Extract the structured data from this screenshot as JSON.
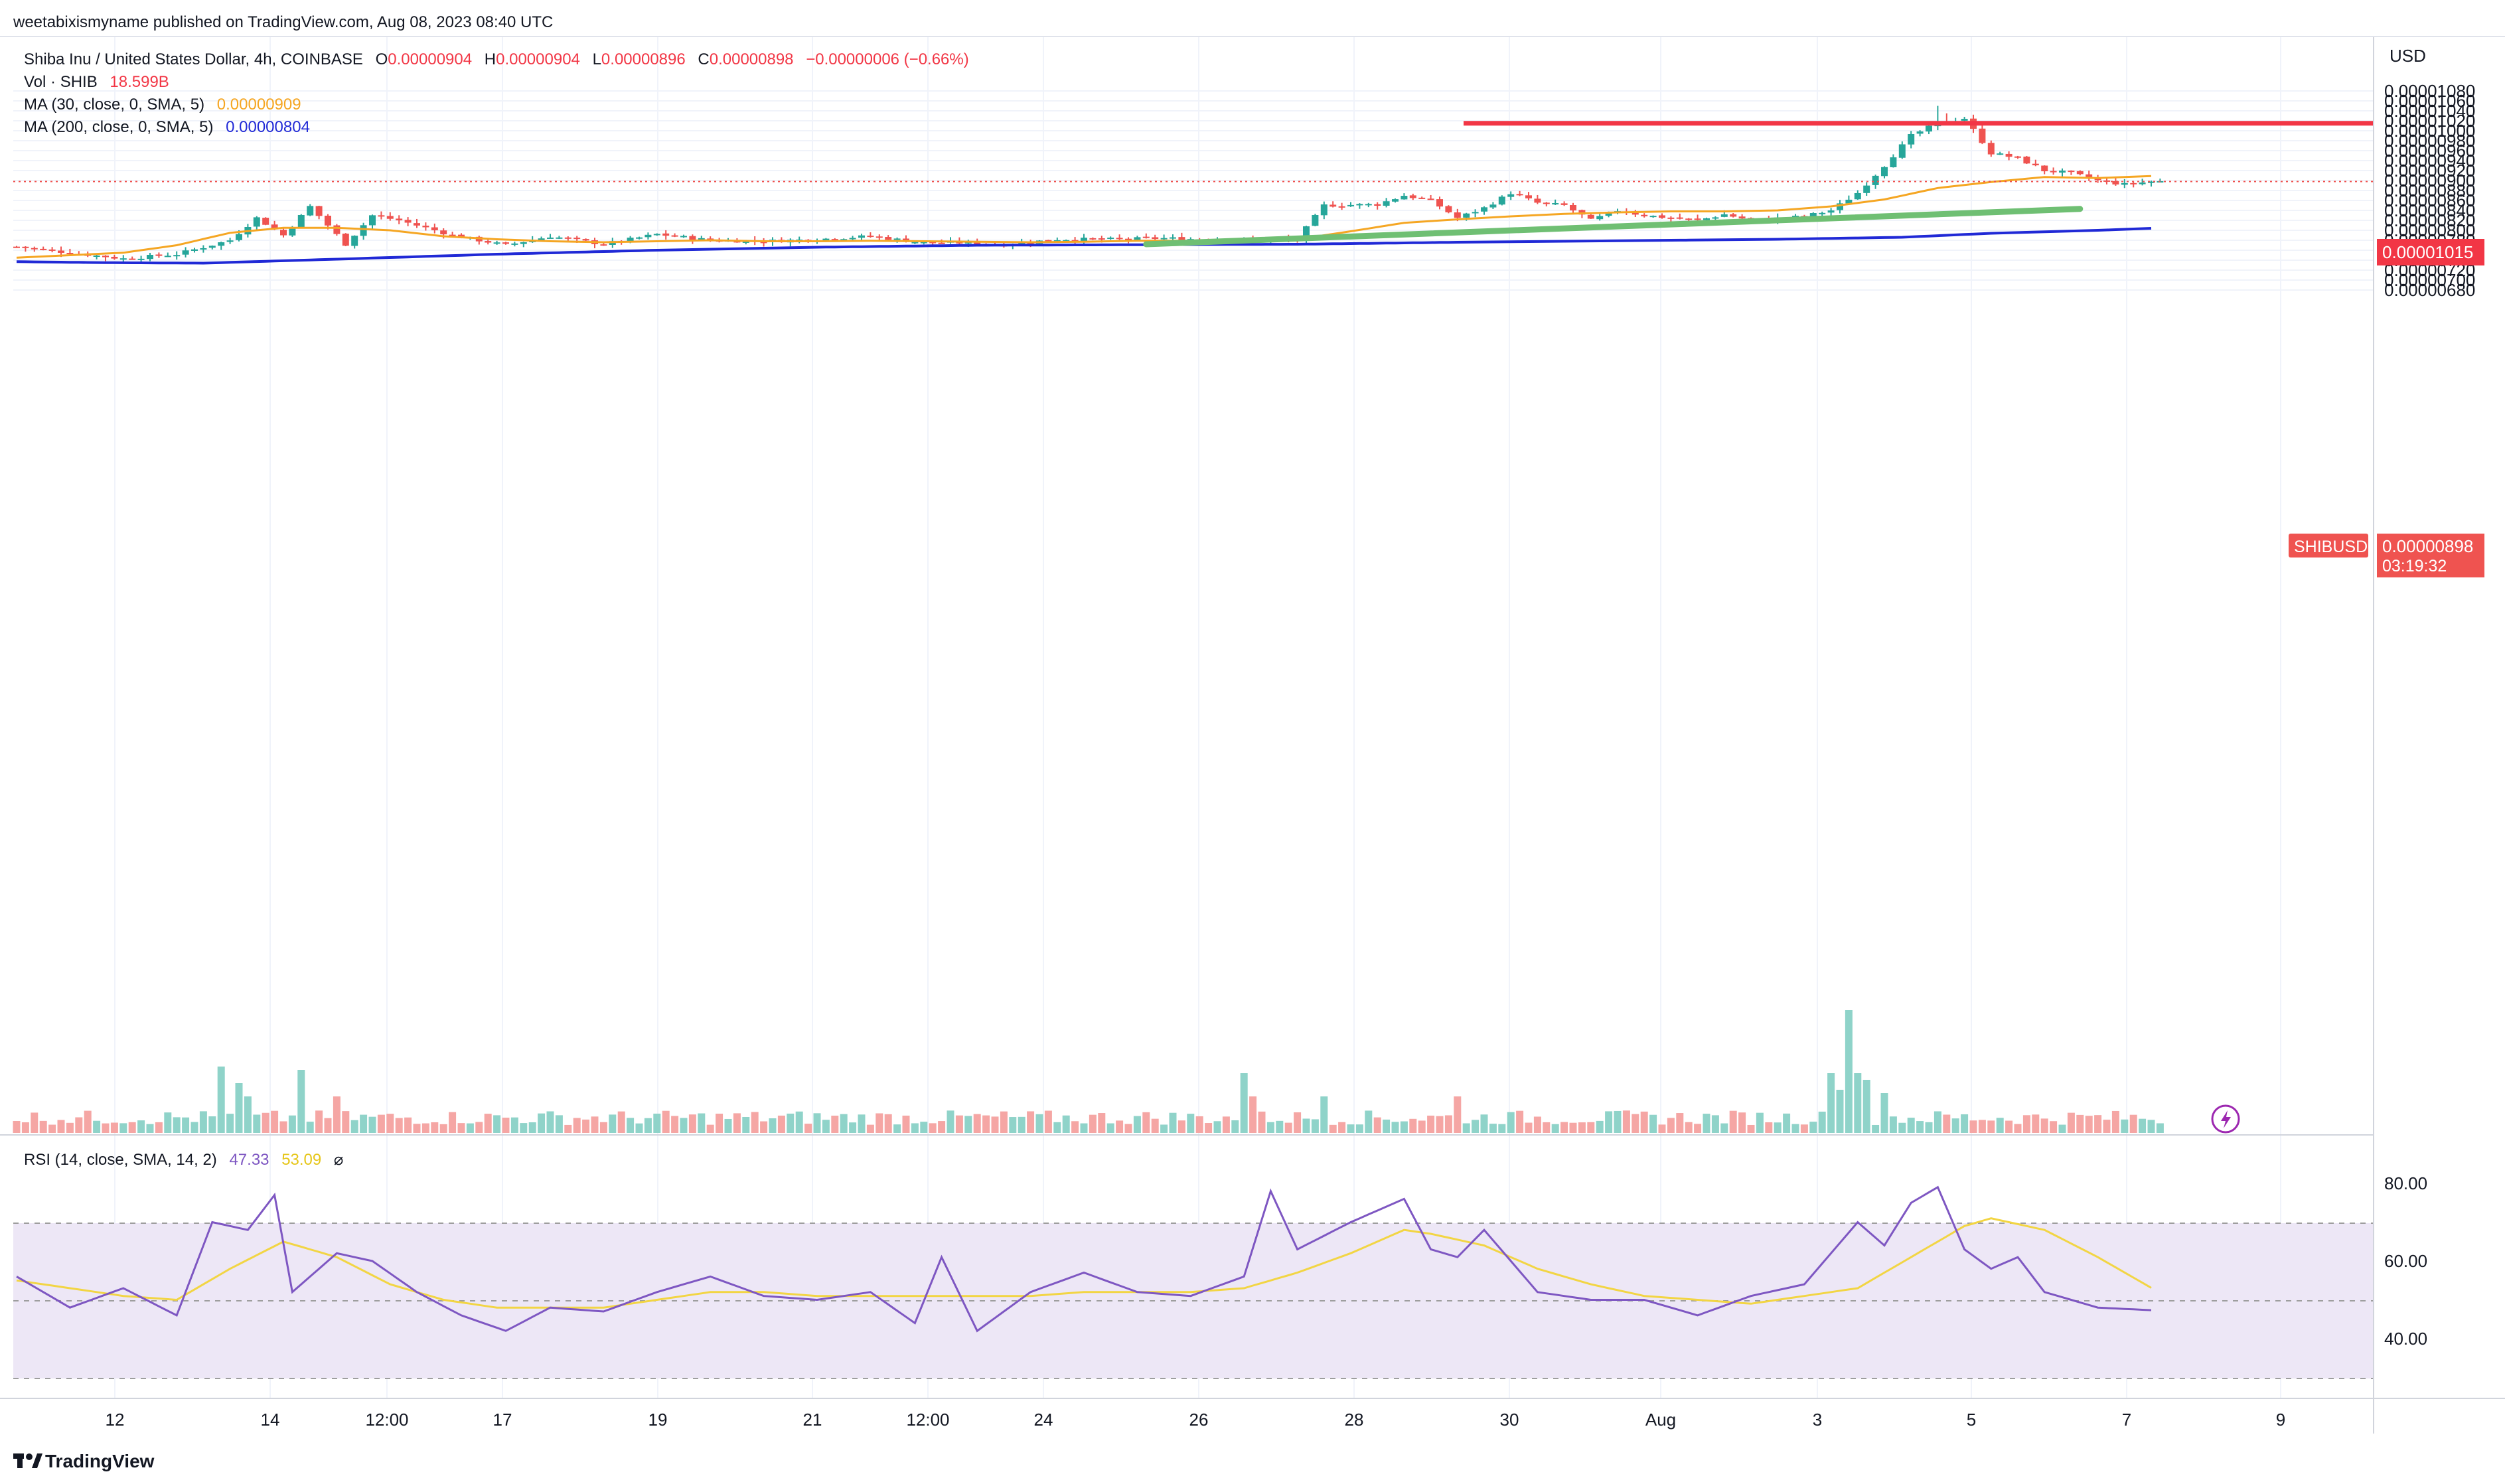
{
  "header": {
    "published_by": "weetabixismyname published on TradingView.com, Aug 08, 2023 08:40 UTC"
  },
  "symbol": {
    "title": "Shiba Inu / United States Dollar, 4h, COINBASE",
    "o_label": "O",
    "o_value": "0.00000904",
    "h_label": "H",
    "h_value": "0.00000904",
    "l_label": "L",
    "l_value": "0.00000896",
    "c_label": "C",
    "c_value": "0.00000898",
    "change": "−0.00000006 (−0.66%)",
    "ticker": "SHIBUSD",
    "last_price": "0.00000898",
    "countdown": "03:19:32"
  },
  "indicators": {
    "vol_label": "Vol · SHIB",
    "vol_value": "18.599B",
    "ma30_label": "MA (30, close, 0, SMA, 5)",
    "ma30_value": "0.00000909",
    "ma200_label": "MA (200, close, 0, SMA, 5)",
    "ma200_value": "0.00000804",
    "rsi_label": "RSI (14, close, SMA, 14, 2)",
    "rsi_value": "47.33",
    "rsi_ma_value": "53.09",
    "eye_icon": "⌀"
  },
  "axis": {
    "currency": "USD",
    "resistance_label": "0.00001015",
    "footer_brand": "TradingView"
  },
  "colors": {
    "up": "#26a69a",
    "down": "#ef5350",
    "vol_up": "#8fd3c9",
    "vol_down": "#f5a6a4",
    "ma30": "#f5a623",
    "ma200": "#2029d6",
    "resistance": "#f23645",
    "trendline": "#6fbf73",
    "rsi": "#7e57c2",
    "rsi_ma": "#f2d544",
    "rsi_band": "#ede7f6"
  },
  "chart_data": [
    {
      "type": "candlestick",
      "title": "Shiba Inu / United States Dollar, 4h, COINBASE",
      "ylabel": "USD",
      "ylim": [
        6.6e-06,
        1.09e-05
      ],
      "y_ticks": [
        "0.00001080",
        "0.00001060",
        "0.00001040",
        "0.00001020",
        "0.00001000",
        "0.00000980",
        "0.00000960",
        "0.00000940",
        "0.00000920",
        "0.00000900",
        "0.00000880",
        "0.00000860",
        "0.00000840",
        "0.00000820",
        "0.00000800",
        "0.00000780",
        "0.00000760",
        "0.00000740",
        "0.00000720",
        "0.00000700",
        "0.00000680"
      ],
      "x_ticks": [
        "12",
        "14",
        "12:00",
        "17",
        "19",
        "21",
        "12:00",
        "24",
        "26",
        "28",
        "30",
        "Aug",
        "3",
        "5",
        "7",
        "9"
      ],
      "anchors": [
        [
          0,
          7.67
        ],
        [
          12,
          7.43
        ],
        [
          18,
          7.52
        ],
        [
          24,
          7.8
        ],
        [
          27,
          8.25
        ],
        [
          30,
          7.9
        ],
        [
          33,
          8.48
        ],
        [
          37,
          7.72
        ],
        [
          40,
          8.3
        ],
        [
          43,
          8.2
        ],
        [
          49,
          7.9
        ],
        [
          55,
          7.7
        ],
        [
          60,
          7.88
        ],
        [
          66,
          7.72
        ],
        [
          72,
          7.92
        ],
        [
          78,
          7.8
        ],
        [
          84,
          7.78
        ],
        [
          90,
          7.82
        ],
        [
          96,
          7.88
        ],
        [
          102,
          7.75
        ],
        [
          108,
          7.75
        ],
        [
          111,
          7.71
        ],
        [
          117,
          7.82
        ],
        [
          123,
          7.82
        ],
        [
          129,
          7.84
        ],
        [
          138,
          7.8
        ],
        [
          144,
          7.82
        ],
        [
          147,
          8.5
        ],
        [
          153,
          8.52
        ],
        [
          156,
          8.7
        ],
        [
          159,
          8.6
        ],
        [
          162,
          8.25
        ],
        [
          165,
          8.45
        ],
        [
          168,
          8.75
        ],
        [
          171,
          8.55
        ],
        [
          174,
          8.5
        ],
        [
          177,
          8.2
        ],
        [
          180,
          8.4
        ],
        [
          183,
          8.3
        ],
        [
          189,
          8.2
        ],
        [
          192,
          8.32
        ],
        [
          195,
          8.2
        ],
        [
          201,
          8.28
        ],
        [
          204,
          8.4
        ],
        [
          207,
          8.75
        ],
        [
          210,
          9.3
        ],
        [
          213,
          9.9
        ],
        [
          216,
          10.15
        ],
        [
          219,
          10.25
        ],
        [
          222,
          9.55
        ],
        [
          225,
          9.45
        ],
        [
          228,
          9.2
        ],
        [
          231,
          9.15
        ],
        [
          234,
          9.0
        ],
        [
          237,
          8.92
        ],
        [
          240,
          8.98
        ]
      ],
      "series": [
        {
          "name": "MA (30, close, 0, SMA, 5)",
          "anchors": [
            [
              0,
              7.45
            ],
            [
              6,
              7.5
            ],
            [
              12,
              7.55
            ],
            [
              18,
              7.7
            ],
            [
              24,
              7.95
            ],
            [
              30,
              8.05
            ],
            [
              36,
              8.05
            ],
            [
              42,
              8.0
            ],
            [
              48,
              7.88
            ],
            [
              54,
              7.82
            ],
            [
              60,
              7.78
            ],
            [
              66,
              7.76
            ],
            [
              72,
              7.78
            ],
            [
              78,
              7.8
            ],
            [
              84,
              7.78
            ],
            [
              90,
              7.78
            ],
            [
              96,
              7.79
            ],
            [
              102,
              7.78
            ],
            [
              108,
              7.77
            ],
            [
              114,
              7.76
            ],
            [
              120,
              7.77
            ],
            [
              126,
              7.79
            ],
            [
              132,
              7.79
            ],
            [
              138,
              7.8
            ],
            [
              144,
              7.82
            ],
            [
              150,
              7.98
            ],
            [
              156,
              8.15
            ],
            [
              162,
              8.22
            ],
            [
              168,
              8.28
            ],
            [
              174,
              8.33
            ],
            [
              180,
              8.36
            ],
            [
              186,
              8.38
            ],
            [
              192,
              8.38
            ],
            [
              198,
              8.4
            ],
            [
              204,
              8.48
            ],
            [
              210,
              8.62
            ],
            [
              216,
              8.85
            ],
            [
              222,
              8.97
            ],
            [
              228,
              9.07
            ],
            [
              234,
              9.05
            ],
            [
              240,
              9.09
            ]
          ]
        },
        {
          "name": "MA (200, close, 0, SMA, 5)",
          "anchors": [
            [
              0,
              7.37
            ],
            [
              10,
              7.35
            ],
            [
              21,
              7.34
            ],
            [
              36,
              7.42
            ],
            [
              54,
              7.52
            ],
            [
              72,
              7.6
            ],
            [
              90,
              7.66
            ],
            [
              108,
              7.7
            ],
            [
              126,
              7.71
            ],
            [
              144,
              7.72
            ],
            [
              162,
              7.76
            ],
            [
              180,
              7.79
            ],
            [
              198,
              7.82
            ],
            [
              212,
              7.86
            ],
            [
              222,
              7.94
            ],
            [
              234,
              8.0
            ],
            [
              240,
              8.04
            ]
          ]
        }
      ],
      "annotations": [
        {
          "type": "horizontal_line",
          "value": 1.015e-05,
          "label": "0.00001015"
        },
        {
          "type": "trendline",
          "from": [
            127,
            7.72e-06
          ],
          "to": [
            232,
            8.43e-06
          ]
        }
      ]
    },
    {
      "type": "bar",
      "title": "Vol · SHIB",
      "last_value": "18.599B",
      "spikes": [
        [
          23,
          1.0
        ],
        [
          25,
          0.75
        ],
        [
          26,
          0.55
        ],
        [
          32,
          0.95
        ],
        [
          36,
          0.55
        ],
        [
          138,
          0.9
        ],
        [
          139,
          0.55
        ],
        [
          147,
          0.55
        ],
        [
          162,
          0.55
        ],
        [
          204,
          0.9
        ],
        [
          205,
          0.65
        ],
        [
          206,
          1.85
        ],
        [
          207,
          0.9
        ],
        [
          208,
          0.8
        ],
        [
          210,
          0.6
        ]
      ]
    },
    {
      "type": "line",
      "title": "RSI (14, close, SMA, 14, 2)",
      "ylim": [
        26,
        90
      ],
      "y_ticks": [
        "80.00",
        "60.00",
        "40.00"
      ],
      "bands": [
        30,
        50,
        70
      ],
      "series": [
        {
          "name": "RSI",
          "last": 47.33,
          "anchors": [
            [
              0,
              56
            ],
            [
              6,
              48
            ],
            [
              12,
              53
            ],
            [
              18,
              46
            ],
            [
              22,
              70
            ],
            [
              26,
              68
            ],
            [
              29,
              77
            ],
            [
              31,
              52
            ],
            [
              36,
              62
            ],
            [
              40,
              60
            ],
            [
              45,
              52
            ],
            [
              50,
              46
            ],
            [
              55,
              42
            ],
            [
              60,
              48
            ],
            [
              66,
              47
            ],
            [
              72,
              52
            ],
            [
              78,
              56
            ],
            [
              84,
              51
            ],
            [
              90,
              50
            ],
            [
              96,
              52
            ],
            [
              101,
              44
            ],
            [
              104,
              61
            ],
            [
              108,
              42
            ],
            [
              114,
              52
            ],
            [
              120,
              57
            ],
            [
              126,
              52
            ],
            [
              132,
              51
            ],
            [
              138,
              56
            ],
            [
              141,
              78
            ],
            [
              144,
              63
            ],
            [
              150,
              70
            ],
            [
              156,
              76
            ],
            [
              159,
              63
            ],
            [
              162,
              61
            ],
            [
              165,
              68
            ],
            [
              171,
              52
            ],
            [
              177,
              50
            ],
            [
              183,
              50
            ],
            [
              189,
              46
            ],
            [
              195,
              51
            ],
            [
              201,
              54
            ],
            [
              207,
              70
            ],
            [
              210,
              64
            ],
            [
              213,
              75
            ],
            [
              216,
              79
            ],
            [
              219,
              63
            ],
            [
              222,
              58
            ],
            [
              225,
              61
            ],
            [
              228,
              52
            ],
            [
              234,
              48
            ],
            [
              240,
              47.33
            ]
          ]
        },
        {
          "name": "RSI SMA",
          "last": 53.09,
          "anchors": [
            [
              0,
              55
            ],
            [
              6,
              53
            ],
            [
              12,
              51
            ],
            [
              18,
              50
            ],
            [
              24,
              58
            ],
            [
              30,
              65
            ],
            [
              36,
              61
            ],
            [
              42,
              54
            ],
            [
              48,
              50
            ],
            [
              54,
              48
            ],
            [
              60,
              48
            ],
            [
              66,
              48
            ],
            [
              72,
              50
            ],
            [
              78,
              52
            ],
            [
              84,
              52
            ],
            [
              90,
              51
            ],
            [
              96,
              51
            ],
            [
              102,
              51
            ],
            [
              108,
              51
            ],
            [
              114,
              51
            ],
            [
              120,
              52
            ],
            [
              126,
              52
            ],
            [
              132,
              52
            ],
            [
              138,
              53
            ],
            [
              144,
              57
            ],
            [
              150,
              62
            ],
            [
              156,
              68
            ],
            [
              159,
              67
            ],
            [
              165,
              64
            ],
            [
              171,
              58
            ],
            [
              177,
              54
            ],
            [
              183,
              51
            ],
            [
              189,
              50
            ],
            [
              195,
              49
            ],
            [
              201,
              51
            ],
            [
              207,
              53
            ],
            [
              213,
              61
            ],
            [
              219,
              69
            ],
            [
              222,
              71
            ],
            [
              228,
              68
            ],
            [
              234,
              61
            ],
            [
              240,
              53.09
            ]
          ]
        }
      ]
    }
  ]
}
